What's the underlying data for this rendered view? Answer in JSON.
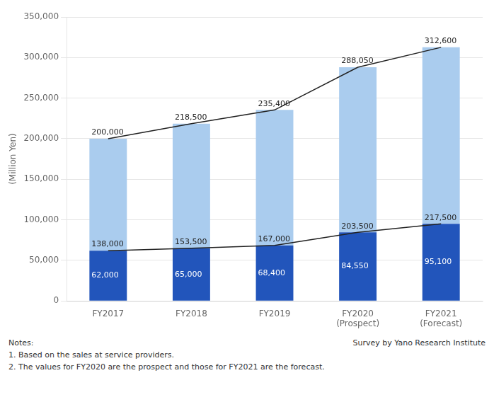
{
  "chart_data": {
    "type": "bar",
    "stacked": true,
    "categories": [
      "FY2017",
      "FY2018",
      "FY2019",
      "FY2020\n(Prospect)",
      "FY2021\n(Forecast)"
    ],
    "series": [
      {
        "color": "#2255bb",
        "values": [
          62000,
          65000,
          68400,
          84550,
          95100
        ],
        "value_labels": [
          "62,000",
          "65,000",
          "68,400",
          "84,550",
          "95,100"
        ]
      },
      {
        "color": "#aaccee",
        "values": [
          138000,
          153500,
          167000,
          203500,
          217500
        ],
        "value_labels": [
          "138,000",
          "153,500",
          "167,000",
          "203,500",
          "217,500"
        ]
      },
      {
        "type": "line",
        "color": "#222222",
        "values": [
          200000,
          218500,
          235400,
          288050,
          312600
        ],
        "value_labels": [
          "200,000",
          "218,500",
          "235,400",
          "288,050",
          "312,600"
        ]
      },
      {
        "type": "line",
        "color": "#222222",
        "values": [
          62000,
          65000,
          68400,
          84550,
          95100
        ]
      }
    ],
    "ylim": [
      0,
      350000
    ],
    "yticks": [
      0,
      {
        "value": 50000,
        "label": "50,000"
      },
      {
        "value": 100000,
        "label": "100,000"
      },
      {
        "value": 150000,
        "label": "150,000"
      },
      {
        "value": 200000,
        "label": "200,000"
      },
      {
        "value": 250000,
        "label": "250,000"
      },
      {
        "value": 300000,
        "label": "300,000"
      },
      {
        "value": 350000,
        "label": "350,000"
      }
    ],
    "y_label": "(Million Yen)",
    "grid": true,
    "data_labels": true,
    "notes": [
      "Notes:",
      "1. Based on the sales at service providers.",
      "2. The values for FY2020 are the prospect and those for FY2021 are the forecast."
    ],
    "source": "Survey by Yano Research Institute"
  }
}
